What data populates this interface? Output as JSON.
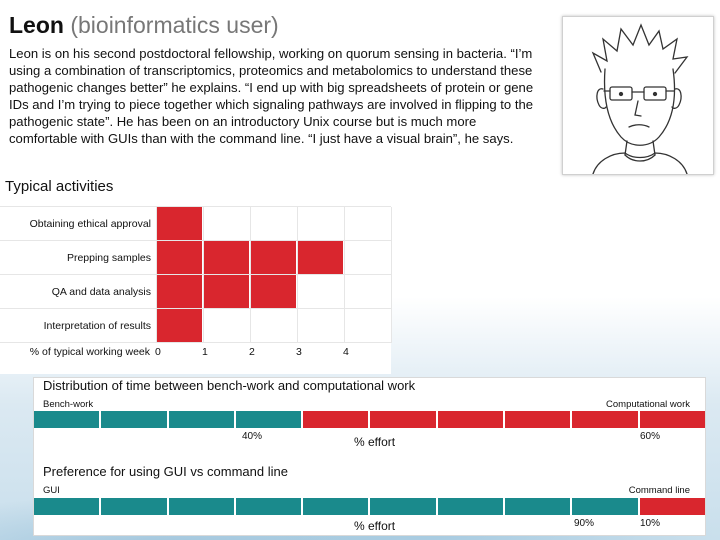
{
  "header": {
    "name": "Leon",
    "role": "(bioinformatics user)",
    "bio": "Leon is on his second postdoctoral fellowship, working on quorum sensing in bacteria. “I’m using a combination of transcriptomics, proteomics and metabolomics to understand these pathogenic changes better” he explains. “I end up with big spreadsheets of protein or gene IDs and I’m trying to piece together which signaling pathways are involved in flipping to the pathogenic state”. He has been on an introductory Unix course but is much more comfortable with GUIs than with the command line. “I just have a visual brain”, he says."
  },
  "colors": {
    "red": "#d9262e",
    "teal": "#1a8a8c"
  },
  "activities": {
    "title": "Typical activities",
    "axis_label": "% of typical working week",
    "ticks": [
      "0",
      "1",
      "2",
      "3",
      "4"
    ]
  },
  "chart_data": [
    {
      "type": "bar",
      "title": "Typical activities",
      "categories": [
        "Obtaining ethical approval",
        "Prepping samples",
        "QA and data analysis",
        "Interpretation of results"
      ],
      "values": [
        1,
        4,
        3,
        1
      ],
      "xlabel": "% of typical working week",
      "xlim": [
        0,
        5
      ]
    },
    {
      "type": "bar",
      "title": "Distribution of time between bench-work and computational work",
      "categories": [
        "Bench-work",
        "Computational work"
      ],
      "values": [
        40,
        60
      ],
      "xlabel": "% effort"
    },
    {
      "type": "bar",
      "title": "Preference for using GUI vs command line",
      "categories": [
        "GUI",
        "Command line"
      ],
      "values": [
        90,
        10
      ],
      "xlabel": "% effort"
    }
  ],
  "distribution": {
    "title": "Distribution of time between bench-work and computational work",
    "left_label": "Bench-work",
    "right_label": "Computational work",
    "left_pct": "40%",
    "right_pct": "60%",
    "effort_label": "% effort",
    "segments_left": 4,
    "segments_total": 10
  },
  "preference": {
    "title": "Preference for using GUI vs command line",
    "left_label": "GUI",
    "right_label": "Command line",
    "left_pct": "90%",
    "right_pct": "10%",
    "effort_label": "% effort",
    "segments_left": 9,
    "segments_total": 10
  }
}
